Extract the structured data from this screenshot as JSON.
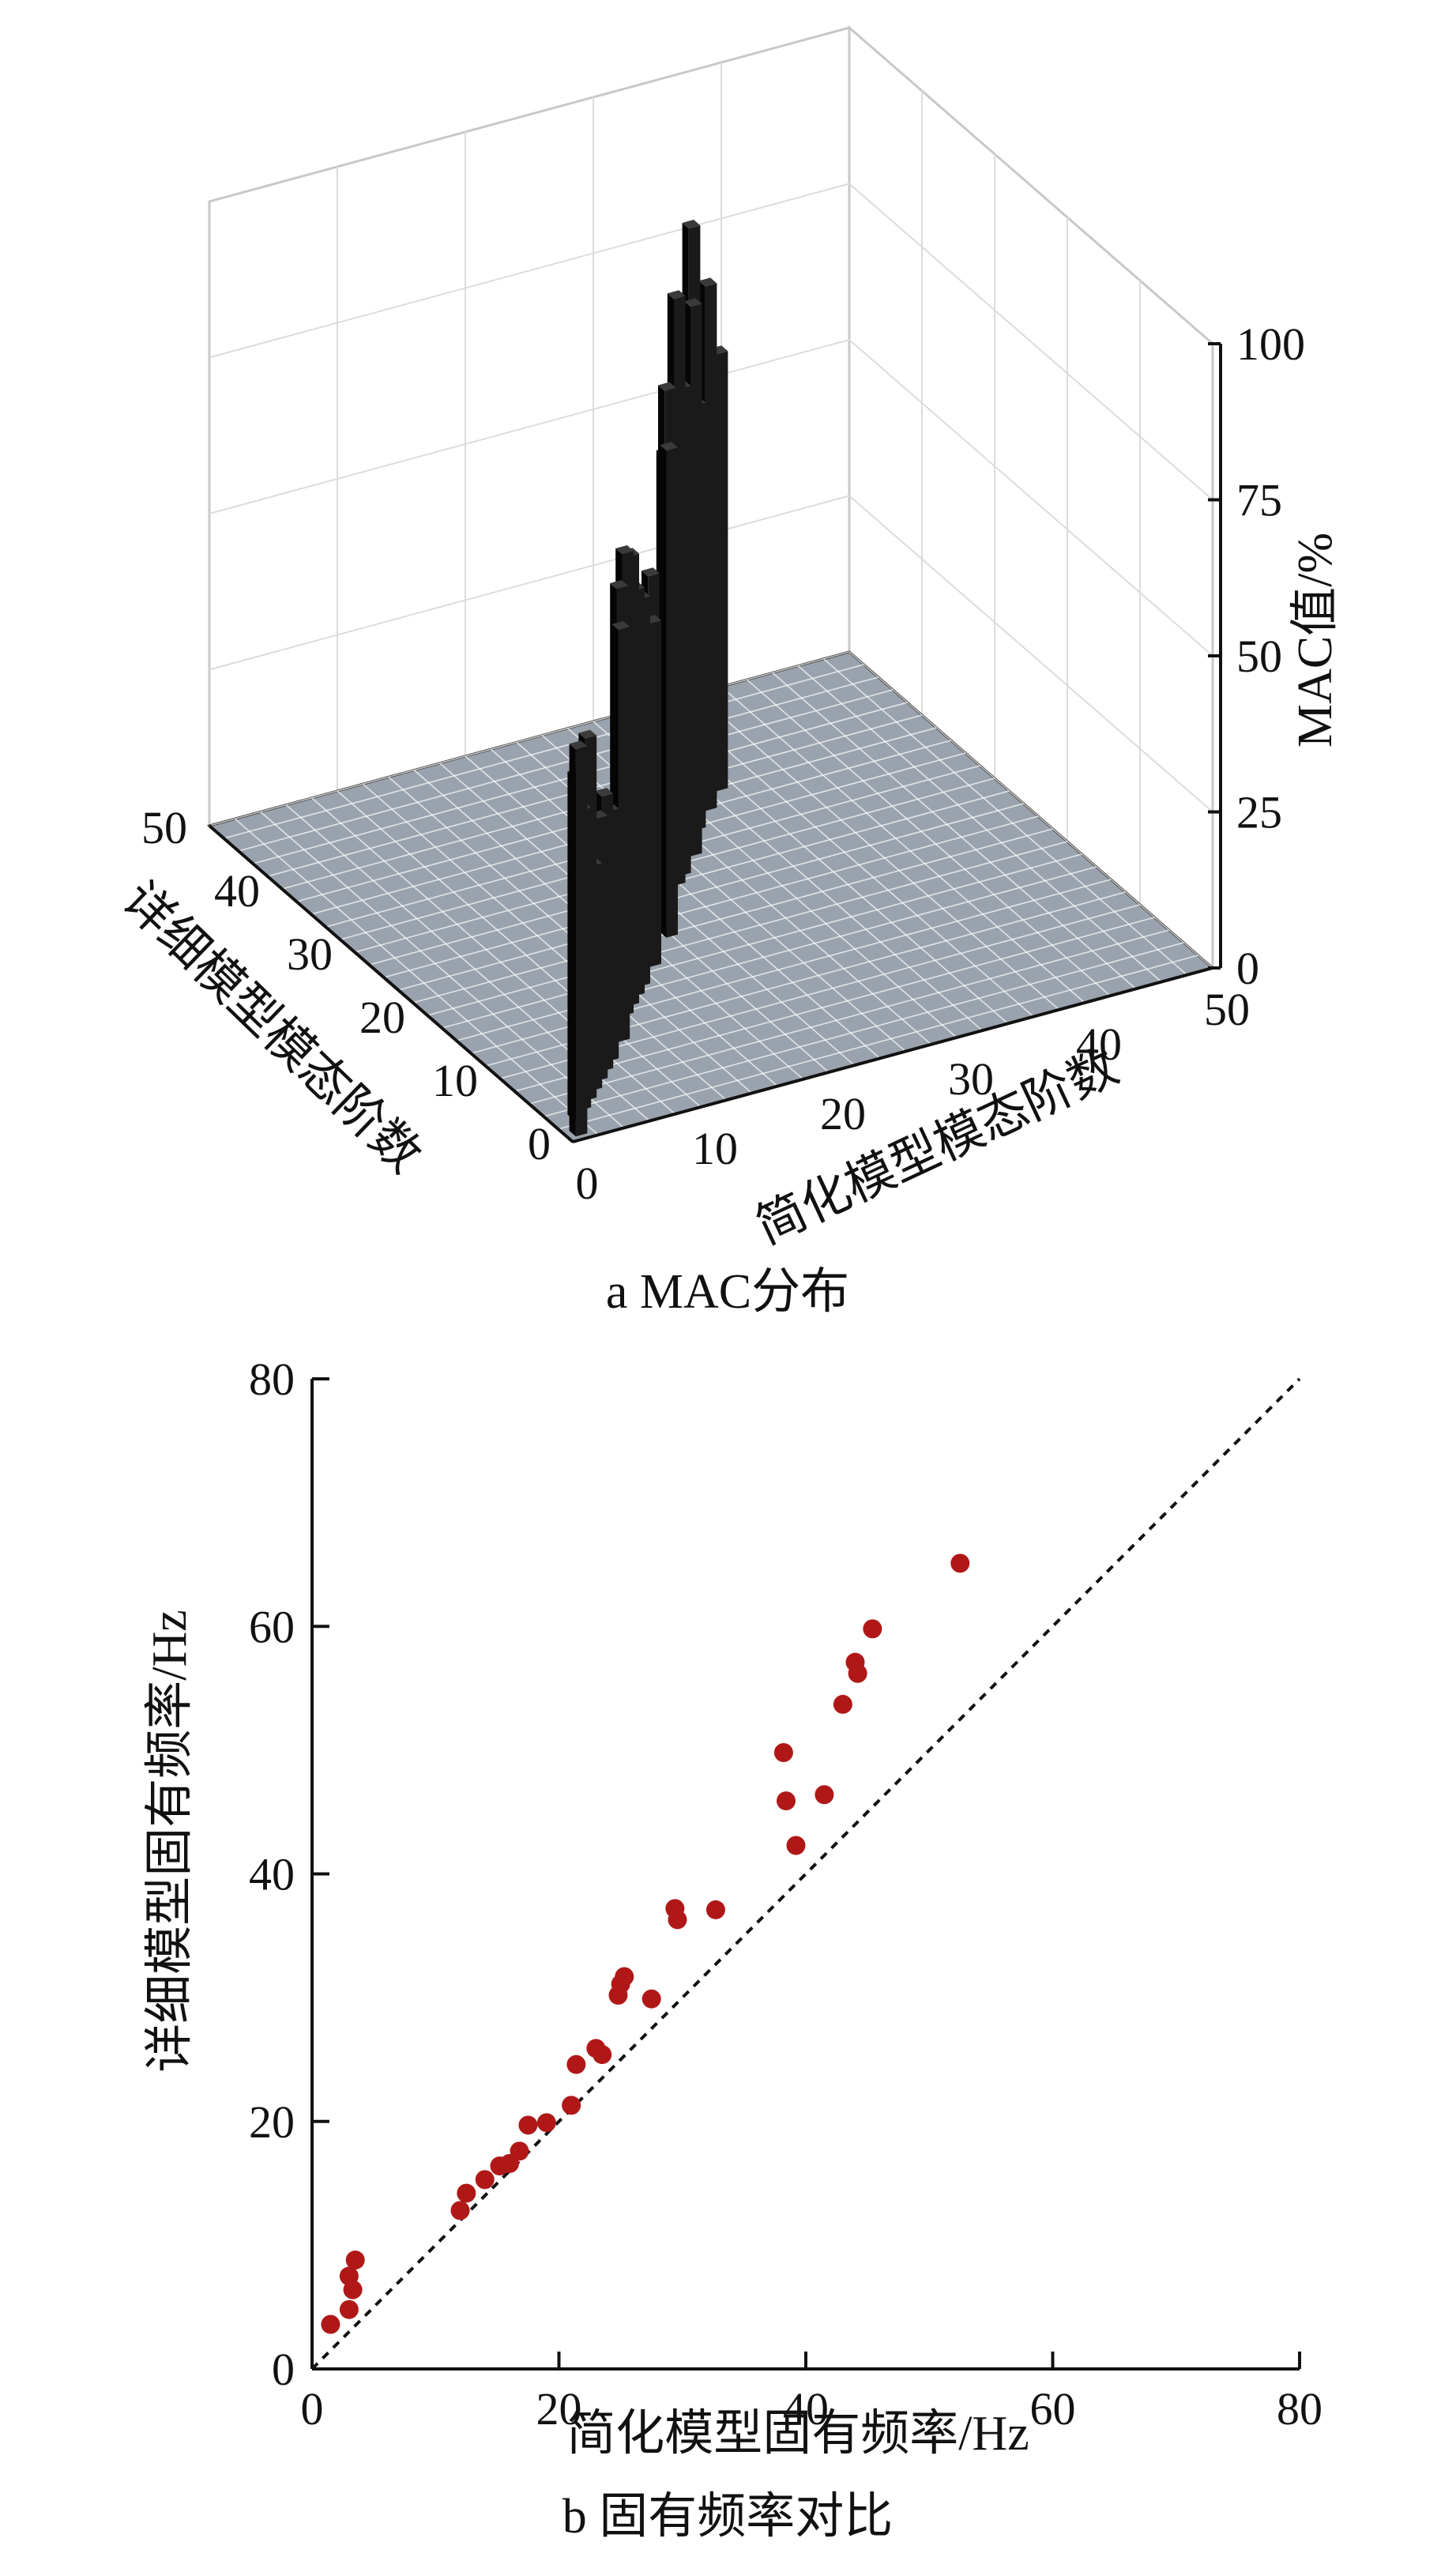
{
  "chart_data": [
    {
      "type": "3d-bar",
      "caption": "a  MAC分布",
      "x_axis": {
        "label": "简化模型模态阶数",
        "ticks": [
          "0",
          "10",
          "20",
          "30",
          "40",
          "50"
        ],
        "range": [
          0,
          50
        ]
      },
      "y_axis": {
        "label": "详细模型模态阶数",
        "ticks": [
          "0",
          "10",
          "20",
          "30",
          "40",
          "50"
        ],
        "range": [
          0,
          50
        ]
      },
      "z_axis": {
        "label": "MAC值/%",
        "ticks": [
          "0",
          "25",
          "50",
          "75",
          "100"
        ],
        "range": [
          0,
          100
        ]
      },
      "grid": true,
      "bar_color": "#0d0d0d",
      "bars": [
        {
          "x": 1,
          "y": 1,
          "mac": 62
        },
        {
          "x": 2,
          "y": 3,
          "mac": 55
        },
        {
          "x": 3,
          "y": 4,
          "mac": 48
        },
        {
          "x": 4,
          "y": 5,
          "mac": 58
        },
        {
          "x": 5,
          "y": 6,
          "mac": 36
        },
        {
          "x": 6,
          "y": 7,
          "mac": 42
        },
        {
          "x": 7,
          "y": 8,
          "mac": 44
        },
        {
          "x": 8,
          "y": 9,
          "mac": 40
        },
        {
          "x": 10,
          "y": 11,
          "mac": 66
        },
        {
          "x": 11,
          "y": 13,
          "mac": 70
        },
        {
          "x": 12,
          "y": 14,
          "mac": 74
        },
        {
          "x": 13,
          "y": 15,
          "mac": 72
        },
        {
          "x": 14,
          "y": 16,
          "mac": 65
        },
        {
          "x": 15,
          "y": 17,
          "mac": 62
        },
        {
          "x": 17,
          "y": 19,
          "mac": 55
        },
        {
          "x": 18,
          "y": 21,
          "mac": 60
        },
        {
          "x": 20,
          "y": 22,
          "mac": 78
        },
        {
          "x": 21,
          "y": 24,
          "mac": 85
        },
        {
          "x": 22,
          "y": 26,
          "mac": 72
        },
        {
          "x": 24,
          "y": 28,
          "mac": 94
        },
        {
          "x": 25,
          "y": 29,
          "mac": 78
        },
        {
          "x": 27,
          "y": 31,
          "mac": 88
        },
        {
          "x": 28,
          "y": 33,
          "mac": 98
        },
        {
          "x": 29,
          "y": 34,
          "mac": 68
        },
        {
          "x": 31,
          "y": 36,
          "mac": 84
        },
        {
          "x": 33,
          "y": 38,
          "mac": 70
        }
      ]
    },
    {
      "type": "scatter",
      "caption": "b  固有频率对比",
      "xlabel": "简化模型固有频率/Hz",
      "ylabel": "详细模型固有频率/Hz",
      "xlim": [
        0,
        80
      ],
      "ylim": [
        0,
        80
      ],
      "xticks": [
        "0",
        "20",
        "40",
        "60",
        "80"
      ],
      "yticks": [
        "0",
        "20",
        "40",
        "60",
        "80"
      ],
      "reference_line": "y = x",
      "point_color": "#b01818",
      "points": [
        [
          1.5,
          3.6
        ],
        [
          3.0,
          4.8
        ],
        [
          3.0,
          7.5
        ],
        [
          3.3,
          6.4
        ],
        [
          3.5,
          8.8
        ],
        [
          12.0,
          12.8
        ],
        [
          12.5,
          14.2
        ],
        [
          14.0,
          15.3
        ],
        [
          15.2,
          16.4
        ],
        [
          16.0,
          16.6
        ],
        [
          16.8,
          17.6
        ],
        [
          17.5,
          19.7
        ],
        [
          19.0,
          19.9
        ],
        [
          21.0,
          21.3
        ],
        [
          21.4,
          24.6
        ],
        [
          23.0,
          25.9
        ],
        [
          23.5,
          25.4
        ],
        [
          24.8,
          30.2
        ],
        [
          25.0,
          31.1
        ],
        [
          25.3,
          31.7
        ],
        [
          27.5,
          29.9
        ],
        [
          29.4,
          37.2
        ],
        [
          29.6,
          36.3
        ],
        [
          32.7,
          37.1
        ],
        [
          38.2,
          49.8
        ],
        [
          38.4,
          45.9
        ],
        [
          39.2,
          42.3
        ],
        [
          41.5,
          46.4
        ],
        [
          43.0,
          53.7
        ],
        [
          44.0,
          57.1
        ],
        [
          44.2,
          56.2
        ],
        [
          45.4,
          59.8
        ],
        [
          52.5,
          65.1
        ]
      ]
    }
  ]
}
